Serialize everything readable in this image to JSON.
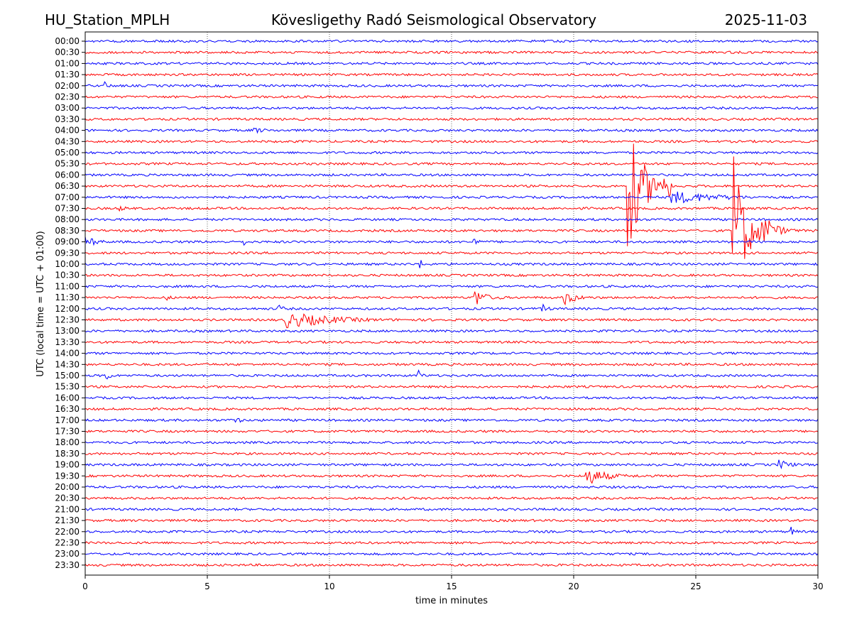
{
  "header": {
    "left": "HU_Station_MPLH",
    "center": "Kövesligethy Radó Seismological Observatory",
    "right": "2025-11-03"
  },
  "chart_data": {
    "type": "line",
    "xlabel": "time in minutes",
    "ylabel": "UTC (local time = UTC + 01:00)",
    "xlim": [
      0,
      30
    ],
    "x_ticks": [
      "0",
      "5",
      "10",
      "15",
      "20",
      "25",
      "30"
    ],
    "grid": "vertical dotted at each x tick",
    "trace_colors": [
      "#0000ff",
      "#ff0000"
    ],
    "rows": [
      "00:00",
      "00:30",
      "01:00",
      "01:30",
      "02:00",
      "02:30",
      "03:00",
      "03:30",
      "04:00",
      "04:30",
      "05:00",
      "05:30",
      "06:00",
      "06:30",
      "07:00",
      "07:30",
      "08:00",
      "08:30",
      "09:00",
      "09:30",
      "10:00",
      "10:30",
      "11:00",
      "11:30",
      "12:00",
      "12:30",
      "13:00",
      "13:30",
      "14:00",
      "14:30",
      "15:00",
      "15:30",
      "16:00",
      "16:30",
      "17:00",
      "17:30",
      "18:00",
      "18:30",
      "19:00",
      "19:30",
      "20:00",
      "20:30",
      "21:00",
      "21:30",
      "22:00",
      "22:30",
      "23:00",
      "23:30"
    ],
    "events": [
      {
        "row": "02:00",
        "start": 0.8,
        "end": 1.6,
        "amp": 6
      },
      {
        "row": "04:00",
        "start": 6.9,
        "end": 8.5,
        "amp": 5
      },
      {
        "row": "07:30",
        "start": 1.4,
        "end": 2.8,
        "amp": 4
      },
      {
        "row": "09:00",
        "start": 0,
        "end": 1.8,
        "amp": 8
      },
      {
        "row": "09:00",
        "start": 6.5,
        "end": 7.3,
        "amp": 5
      },
      {
        "row": "09:00",
        "start": 15.9,
        "end": 16.5,
        "amp": 8
      },
      {
        "row": "10:00",
        "start": 13.7,
        "end": 14.6,
        "amp": 7
      },
      {
        "row": "11:30",
        "start": 3.3,
        "end": 3.9,
        "amp": 6
      },
      {
        "row": "11:30",
        "start": 15.9,
        "end": 17.2,
        "amp": 16
      },
      {
        "row": "11:30",
        "start": 19.6,
        "end": 21.1,
        "amp": 12
      },
      {
        "row": "12:00",
        "start": 7.9,
        "end": 8.6,
        "amp": 7
      },
      {
        "row": "12:00",
        "start": 18.7,
        "end": 19.6,
        "amp": 7
      },
      {
        "row": "12:30",
        "start": 8.2,
        "end": 14.5,
        "amp": 12
      },
      {
        "row": "15:00",
        "start": 0.8,
        "end": 1.5,
        "amp": 10
      },
      {
        "row": "15:00",
        "start": 13.6,
        "end": 14.2,
        "amp": 10
      },
      {
        "row": "17:00",
        "start": 6.1,
        "end": 6.9,
        "amp": 7
      },
      {
        "row": "19:00",
        "start": 28.4,
        "end": 30,
        "amp": 8
      },
      {
        "row": "19:30",
        "start": 20.5,
        "end": 23.0,
        "amp": 14
      },
      {
        "row": "22:00",
        "start": 28.9,
        "end": 29.6,
        "amp": 7
      },
      {
        "row": "06:30",
        "start": 22.2,
        "end": 24.0,
        "amp": 100
      },
      {
        "row": "07:00",
        "start": 24.0,
        "end": 30,
        "amp": 10
      },
      {
        "row": "08:30",
        "start": 26.5,
        "end": 28.0,
        "amp": 120
      },
      {
        "row": "08:30",
        "start": 28.0,
        "end": 30,
        "amp": 12
      }
    ]
  }
}
